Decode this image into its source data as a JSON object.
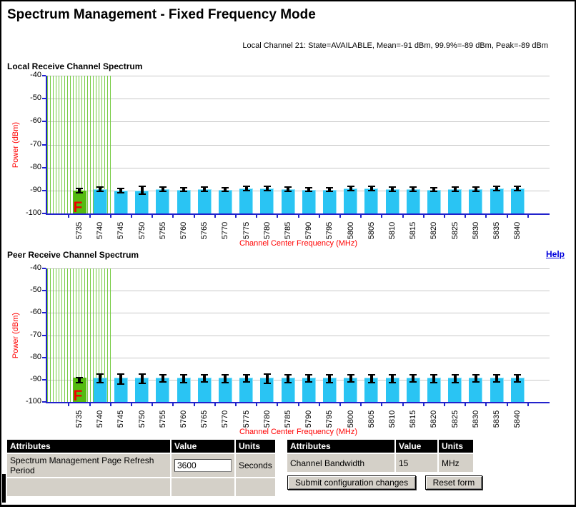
{
  "page": {
    "title": "Spectrum Management - Fixed Frequency Mode",
    "status_line": "Local Channel 21: State=AVAILABLE, Mean=-91 dBm, 99.9%=-89 dBm, Peak=-89 dBm",
    "help_label": "Help"
  },
  "colors": {
    "bar_cyan": "#2AC4F3",
    "bar_green": "#55BB11",
    "fixed_marker_red": "#EE0000",
    "stripe_green": "#77CC44",
    "axis_blue": "#2222CC",
    "grid_gray": "#C8C8C8",
    "axis_title_red": "#FF0000",
    "table_header_bg": "#000000",
    "table_row_bg": "#D4D0C8",
    "help_link_blue": "#0000DD"
  },
  "chart_data": [
    {
      "type": "bar",
      "title": "Local Receive Channel Spectrum",
      "xlabel": "Channel Center Frequency (MHz)",
      "ylabel": "Power (dBm)",
      "ylim": [
        -100,
        -40
      ],
      "yticks": [
        -40,
        -50,
        -60,
        -70,
        -80,
        -90,
        -100
      ],
      "grid": true,
      "categories": [
        5735,
        5740,
        5745,
        5750,
        5755,
        5760,
        5765,
        5770,
        5775,
        5780,
        5785,
        5790,
        5795,
        5800,
        5805,
        5810,
        5815,
        5820,
        5825,
        5830,
        5835,
        5840
      ],
      "values": [
        -90,
        -89.4,
        -90,
        -90,
        -89.4,
        -89.6,
        -89.4,
        -89.6,
        -89.2,
        -89.2,
        -89.4,
        -89.6,
        -89.6,
        -89.2,
        -89.2,
        -89.4,
        -89.4,
        -89.6,
        -89.4,
        -89.4,
        -89.2,
        -89.2
      ],
      "err_high": [
        -89.3,
        -88.8,
        -89.3,
        -88.6,
        -88.8,
        -89.0,
        -88.8,
        -89.0,
        -88.6,
        -88.6,
        -88.8,
        -89.0,
        -89.0,
        -88.6,
        -88.6,
        -88.8,
        -88.8,
        -89.0,
        -88.8,
        -88.8,
        -88.6,
        -88.6
      ],
      "err_low": [
        -90.7,
        -90.0,
        -90.7,
        -91.2,
        -90.0,
        -90.2,
        -90.0,
        -90.2,
        -89.8,
        -89.8,
        -90.0,
        -90.2,
        -90.2,
        -89.8,
        -89.8,
        -90.0,
        -90.0,
        -90.2,
        -90.0,
        -90.0,
        -89.8,
        -89.8
      ],
      "fixed_channel": 5735,
      "fixed_marker": "F",
      "shaded_channels": [
        5735,
        5740
      ]
    },
    {
      "type": "bar",
      "title": "Peer Receive Channel Spectrum",
      "xlabel": "Channel Center Frequency (MHz)",
      "ylabel": "Power (dBm)",
      "ylim": [
        -100,
        -40
      ],
      "yticks": [
        -40,
        -50,
        -60,
        -70,
        -80,
        -90,
        -100
      ],
      "grid": true,
      "categories": [
        5735,
        5740,
        5745,
        5750,
        5755,
        5760,
        5765,
        5770,
        5775,
        5780,
        5785,
        5790,
        5795,
        5800,
        5805,
        5810,
        5815,
        5820,
        5825,
        5830,
        5835,
        5840
      ],
      "values": [
        -89,
        -89,
        -89,
        -89,
        -89,
        -89,
        -89,
        -89,
        -89,
        -89,
        -89,
        -89,
        -89,
        -89,
        -89,
        -89,
        -89,
        -89,
        -89,
        -89,
        -89,
        -89
      ],
      "err_high": [
        -89.3,
        -87.9,
        -87.8,
        -87.9,
        -88.2,
        -88.2,
        -88.1,
        -88.2,
        -88.1,
        -87.8,
        -88.2,
        -88.1,
        -88.2,
        -88.1,
        -88.2,
        -88.2,
        -88.1,
        -88.2,
        -88.2,
        -88.1,
        -88.0,
        -88.1
      ],
      "err_low": [
        -90.9,
        -90.9,
        -91.5,
        -91.3,
        -90.8,
        -90.9,
        -90.8,
        -90.9,
        -90.8,
        -91.4,
        -90.9,
        -90.8,
        -90.9,
        -90.8,
        -90.9,
        -90.9,
        -90.8,
        -90.9,
        -90.9,
        -90.8,
        -90.7,
        -90.8
      ],
      "fixed_channel": 5735,
      "fixed_marker": "F",
      "shaded_channels": [
        5735,
        5740
      ]
    }
  ],
  "tables": {
    "left": {
      "headers": [
        "Attributes",
        "Value",
        "Units"
      ],
      "rows": [
        {
          "label": "Spectrum Management Page Refresh Period",
          "value": "3600",
          "units": "Seconds"
        }
      ]
    },
    "right": {
      "headers": [
        "Attributes",
        "Value",
        "Units"
      ],
      "rows": [
        {
          "label": "Channel Bandwidth",
          "value": "15",
          "units": "MHz"
        }
      ]
    }
  },
  "buttons": {
    "submit": "Submit configuration changes",
    "reset": "Reset form"
  }
}
